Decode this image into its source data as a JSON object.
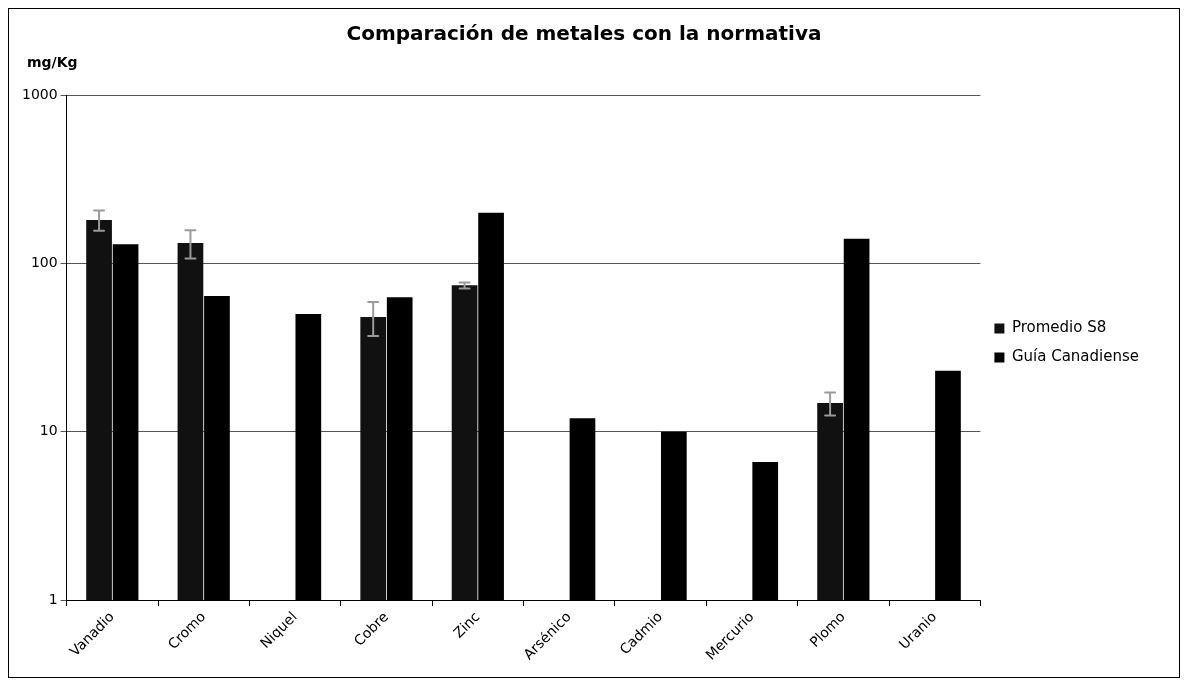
{
  "chart_data": {
    "type": "bar",
    "title": "Comparación de metales con la normativa",
    "ylabel": "mg/Kg",
    "categories": [
      "Vanadio",
      "Cromo",
      "Niquel",
      "Cobre",
      "Zinc",
      "Arsénico",
      "Cadmio",
      "Mercurio",
      "Plomo",
      "Uranio"
    ],
    "series": [
      {
        "name": "Promedio S8",
        "color": "#111111",
        "values": [
          181,
          132,
          null,
          48,
          74,
          null,
          null,
          null,
          14.8,
          null
        ],
        "errors": [
          25,
          25,
          null,
          11,
          3,
          null,
          null,
          null,
          2.3,
          null
        ]
      },
      {
        "name": "Guía Canadiense",
        "color": "#000000",
        "values": [
          130,
          64,
          50,
          63,
          200,
          12,
          10,
          6.6,
          140,
          23
        ]
      }
    ],
    "log": true,
    "ylim": [
      1,
      1000
    ],
    "yticks": [
      1,
      10,
      100,
      1000
    ],
    "grid": "y",
    "legend": "right"
  }
}
